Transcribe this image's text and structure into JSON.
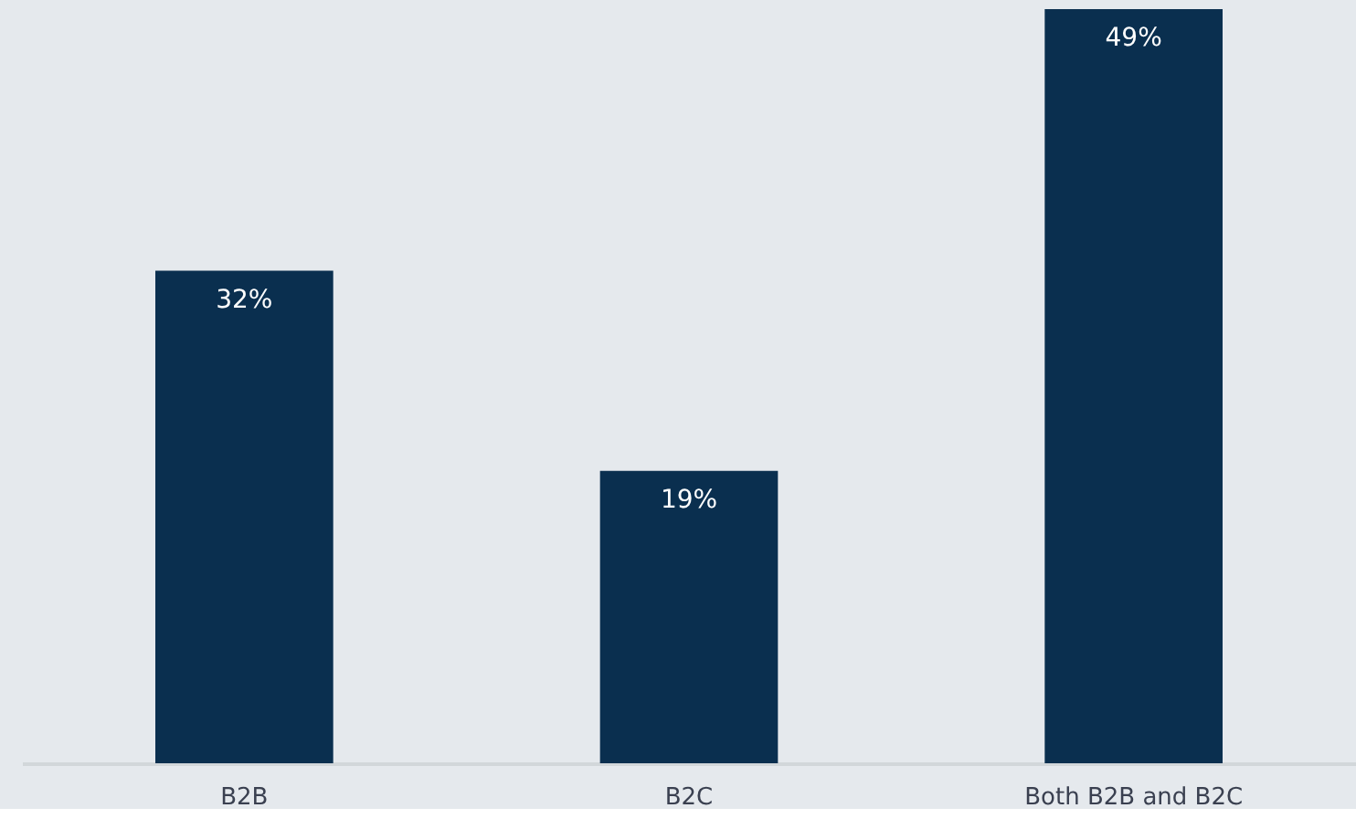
{
  "chart_data": {
    "type": "bar",
    "categories": [
      "B2B",
      "B2C",
      "Both B2B and B2C"
    ],
    "values": [
      32,
      19,
      49
    ],
    "color": "#0a2f4f",
    "value_labels": [
      "32%",
      "19%",
      "49%"
    ]
  }
}
